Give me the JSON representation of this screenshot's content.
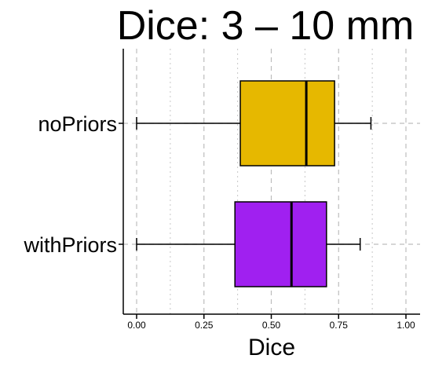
{
  "chart_data": {
    "type": "boxplot",
    "orientation": "horizontal",
    "title": "Dice: 3 – 10 mm",
    "xlabel": "Dice",
    "ylabel": "",
    "xlim": [
      -0.05,
      1.04
    ],
    "x_ticks": [
      0.0,
      0.25,
      0.5,
      0.75,
      1.0
    ],
    "x_tick_labels": [
      "0.00",
      "0.25",
      "0.50",
      "0.75",
      "1.00"
    ],
    "grid": {
      "major_vertical": true,
      "minor_vertical": true,
      "horizontal_at_categories": true
    },
    "legend": "none",
    "categories": [
      "noPriors",
      "withPriors"
    ],
    "series": [
      {
        "category": "noPriors",
        "whisker_low": 0.0,
        "q1": 0.385,
        "median": 0.63,
        "q3": 0.735,
        "whisker_high": 0.87,
        "color": "#E6B800"
      },
      {
        "category": "withPriors",
        "whisker_low": 0.0,
        "q1": 0.365,
        "median": 0.575,
        "q3": 0.705,
        "whisker_high": 0.83,
        "color": "#A020F0"
      }
    ]
  }
}
